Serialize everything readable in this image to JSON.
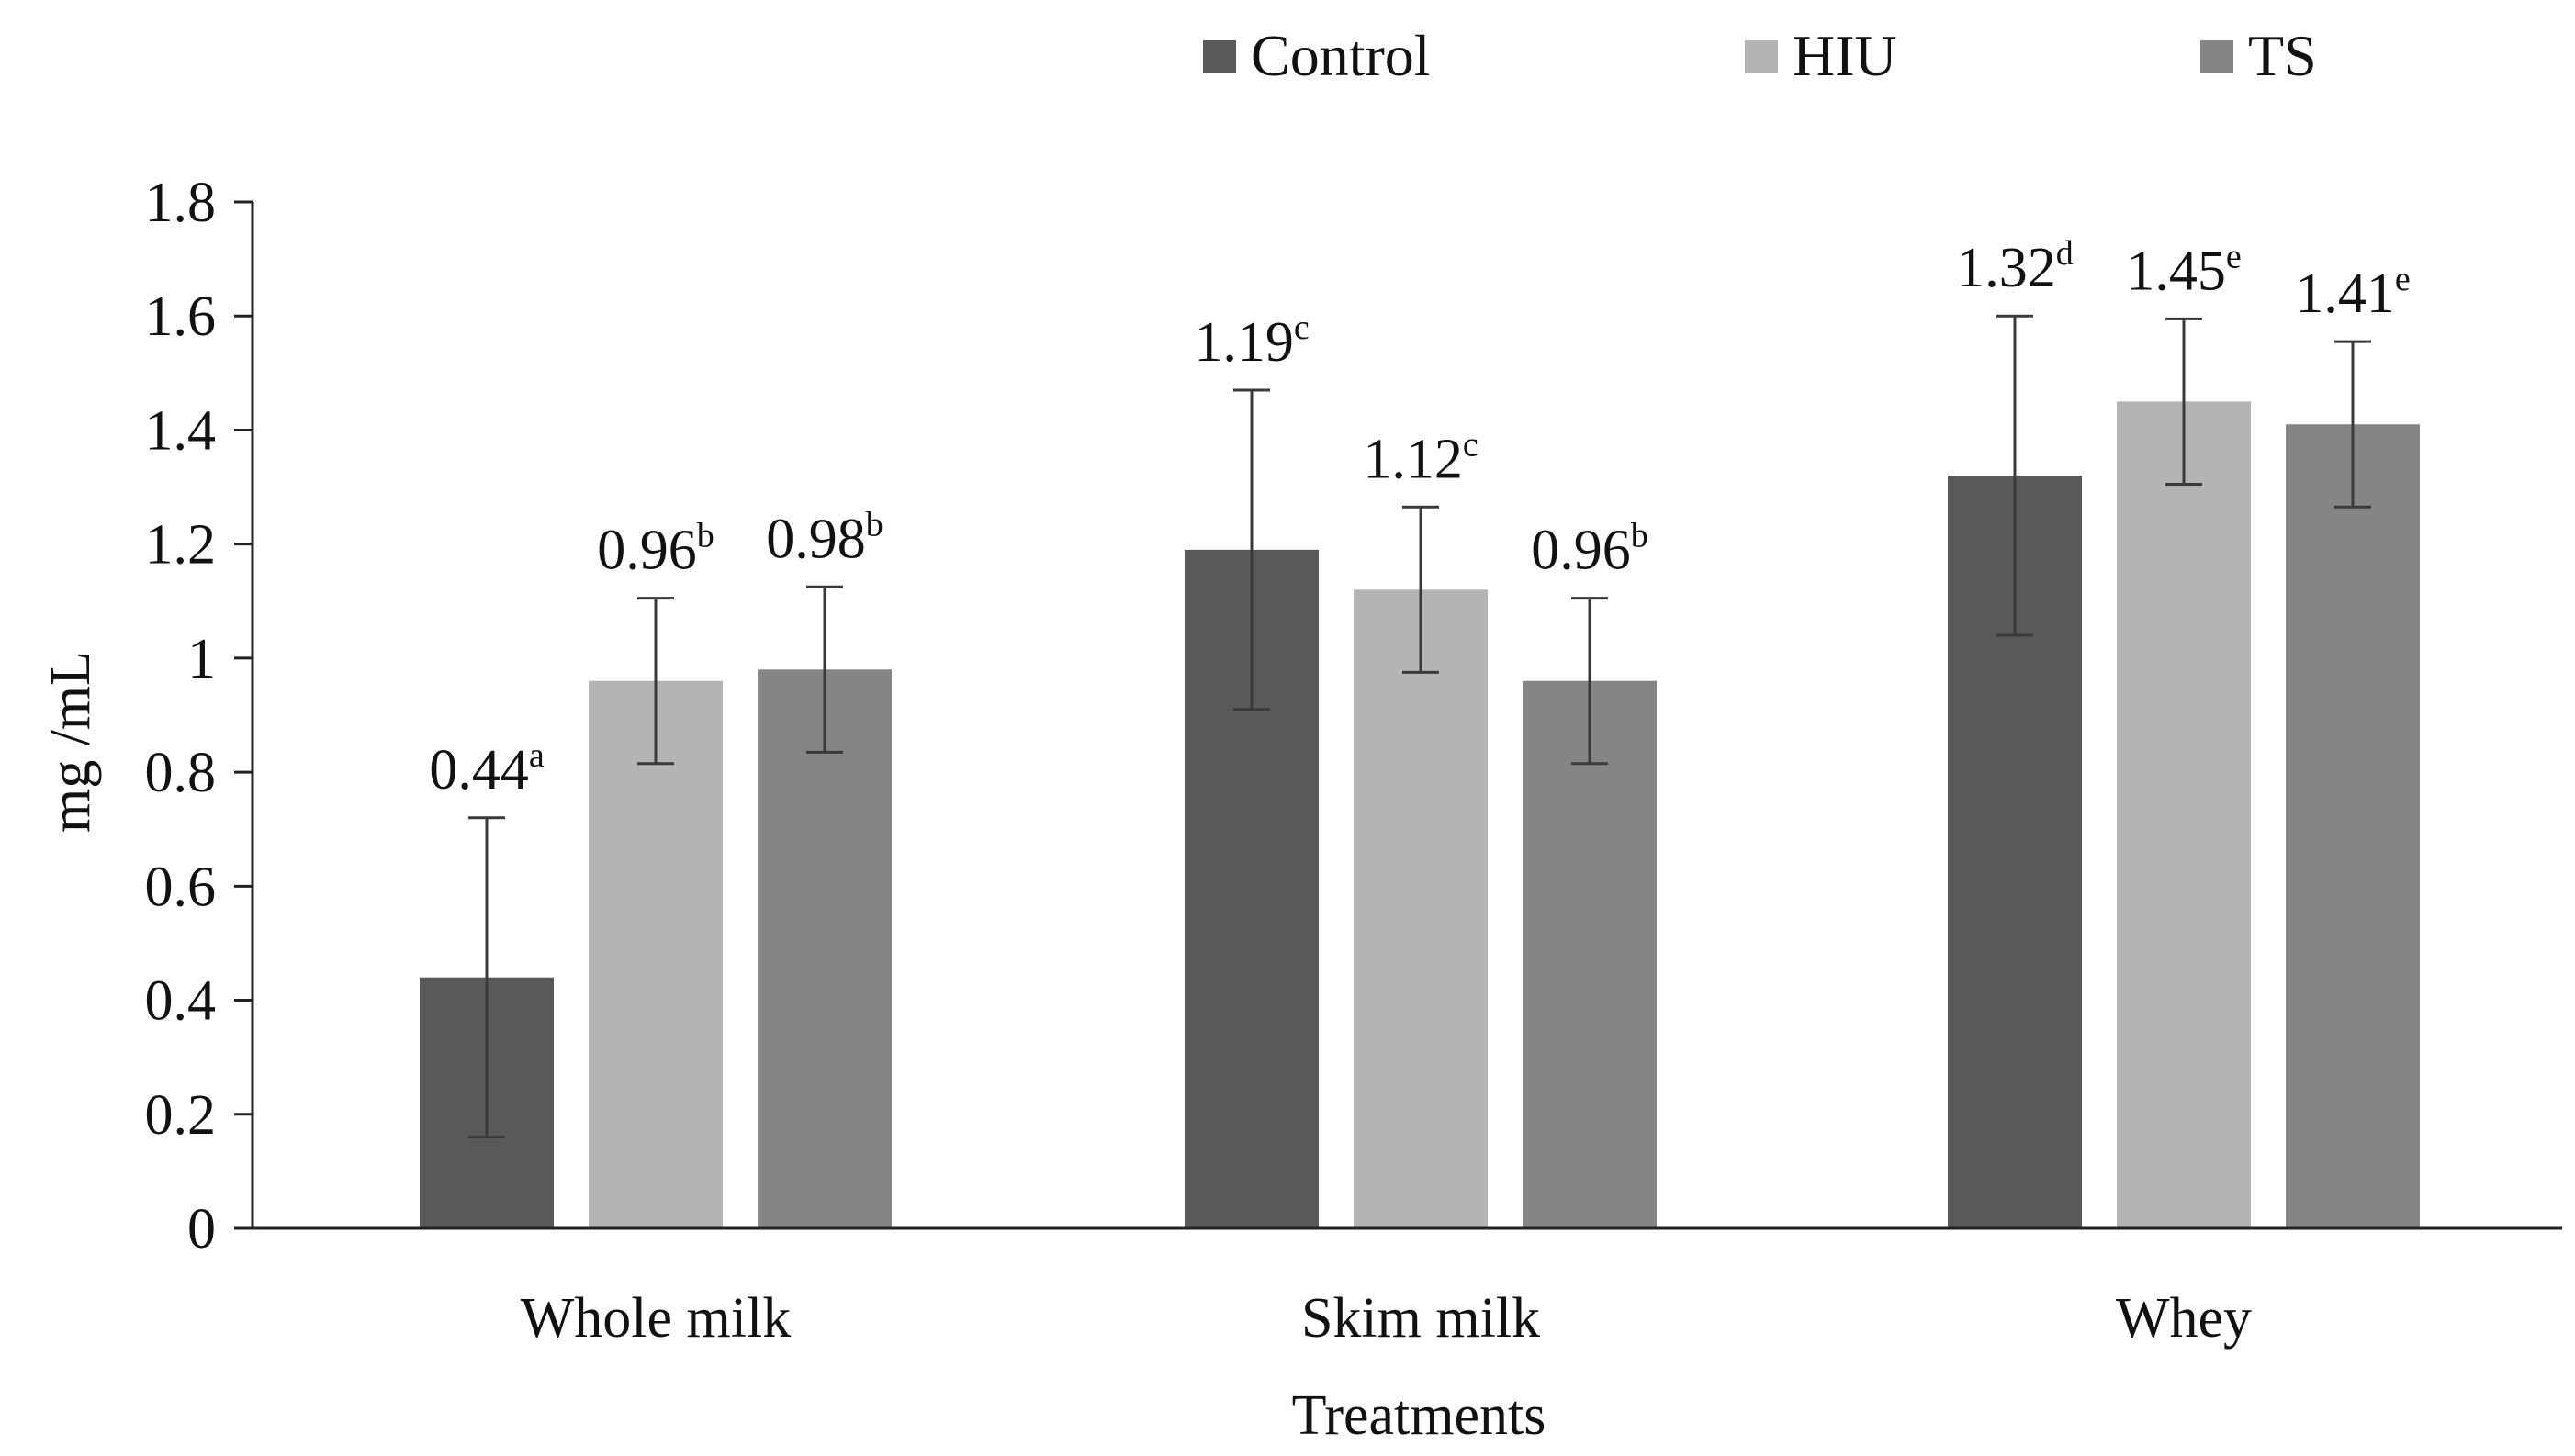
{
  "chart_data": {
    "type": "bar",
    "title": "",
    "xlabel": "Treatments",
    "ylabel": "mg /mL",
    "ylim": [
      0,
      1.8
    ],
    "yticks": [
      0,
      0.2,
      0.4,
      0.6,
      0.8,
      1,
      1.2,
      1.4,
      1.6,
      1.8
    ],
    "ytick_labels": [
      "0",
      "0.2",
      "0.4",
      "0.6",
      "0.8",
      "1",
      "1.2",
      "1.4",
      "1.6",
      "1.8"
    ],
    "grid": false,
    "legend_position": "top",
    "categories": [
      "Whole milk",
      "Skim milk",
      "Whey"
    ],
    "series": [
      {
        "name": "Control",
        "color": "#595959",
        "values": [
          0.44,
          1.19,
          1.32
        ],
        "errors": [
          0.28,
          0.28,
          0.28
        ],
        "value_labels": [
          "0.44",
          "1.19",
          "1.32"
        ],
        "letters": [
          "a",
          "c",
          "d"
        ]
      },
      {
        "name": "HIU",
        "color": "#b4b4b4",
        "values": [
          0.96,
          1.12,
          1.45
        ],
        "errors": [
          0.145,
          0.145,
          0.145
        ],
        "value_labels": [
          "0.96",
          "1.12",
          "1.45"
        ],
        "letters": [
          "b",
          "c",
          "e"
        ]
      },
      {
        "name": "TS",
        "color": "#858585",
        "values": [
          0.98,
          0.96,
          1.41
        ],
        "errors": [
          0.145,
          0.145,
          0.145
        ],
        "value_labels": [
          "0.98",
          "0.96",
          "1.41"
        ],
        "letters": [
          "b",
          "b",
          "e"
        ]
      }
    ]
  }
}
